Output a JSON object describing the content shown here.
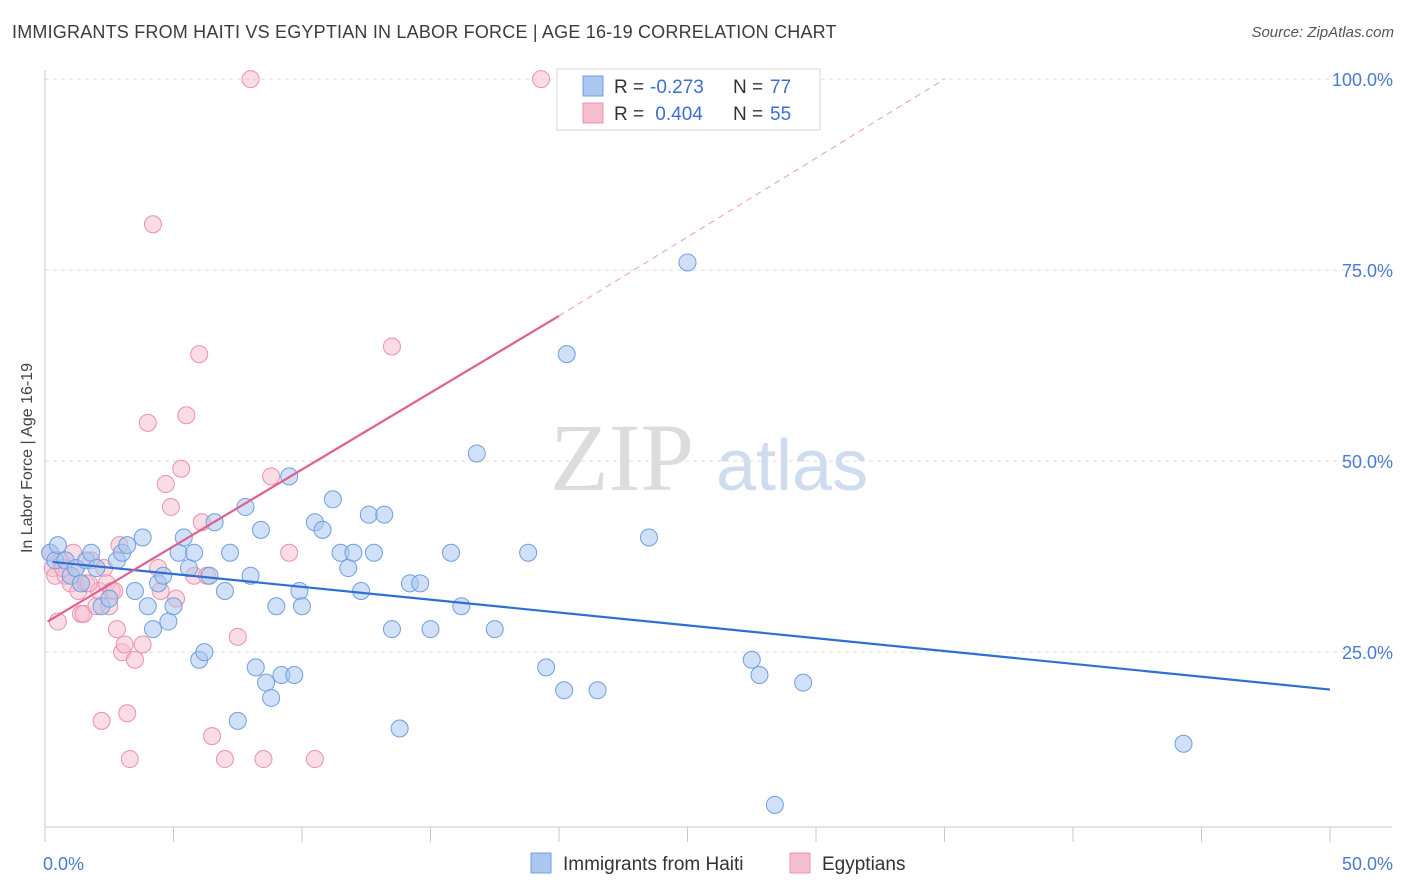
{
  "title": "IMMIGRANTS FROM HAITI VS EGYPTIAN IN LABOR FORCE | AGE 16-19 CORRELATION CHART",
  "source": "Source: ZipAtlas.com",
  "watermark": {
    "zip": "ZIP",
    "atlas": "atlas"
  },
  "legend_box": {
    "rows": [
      {
        "r_label": "R =",
        "r_value": "-0.273",
        "n_label": "N =",
        "n_value": "77"
      },
      {
        "r_label": "R =",
        "r_value": " 0.404",
        "n_label": "N =",
        "n_value": "55"
      }
    ]
  },
  "colors": {
    "haiti_fill": "#a9c7ef",
    "haiti_stroke": "#6f9fe0",
    "haiti_line": "#2f6fd1",
    "egypt_fill": "#f6bfd0",
    "egypt_stroke": "#ec8fae",
    "egypt_line": "#e0608e",
    "tick_blue": "#4a7bd0"
  },
  "chart_data": {
    "type": "scatter",
    "title": "IMMIGRANTS FROM HAITI VS EGYPTIAN IN LABOR FORCE | AGE 16-19 CORRELATION CHART",
    "xlabel": "",
    "ylabel": "In Labor Force | Age 16-19",
    "xlim": [
      0,
      50
    ],
    "ylim": [
      0,
      105
    ],
    "x_tick_labels": [
      "0.0%",
      "50.0%"
    ],
    "y_tick_labels": [
      "25.0%",
      "50.0%",
      "75.0%",
      "100.0%"
    ],
    "y_ticks": [
      25,
      50,
      75,
      100
    ],
    "grid": true,
    "legend_position": "bottom",
    "series": [
      {
        "name": "Immigrants from Haiti",
        "r": -0.273,
        "n": 77,
        "trend": {
          "x": [
            0.3,
            50
          ],
          "y": [
            36.8,
            20.1
          ]
        },
        "points": [
          [
            0.2,
            38
          ],
          [
            0.4,
            37
          ],
          [
            0.5,
            39
          ],
          [
            0.8,
            37
          ],
          [
            1.0,
            35
          ],
          [
            1.2,
            36
          ],
          [
            1.4,
            34
          ],
          [
            1.6,
            37
          ],
          [
            1.8,
            38
          ],
          [
            2.0,
            36
          ],
          [
            2.2,
            31
          ],
          [
            2.5,
            32
          ],
          [
            2.8,
            37
          ],
          [
            3.0,
            38
          ],
          [
            3.2,
            39
          ],
          [
            3.5,
            33
          ],
          [
            3.8,
            40
          ],
          [
            4.0,
            31
          ],
          [
            4.2,
            28
          ],
          [
            4.4,
            34
          ],
          [
            4.6,
            35
          ],
          [
            4.8,
            29
          ],
          [
            5.0,
            31
          ],
          [
            5.2,
            38
          ],
          [
            5.4,
            40
          ],
          [
            5.6,
            36
          ],
          [
            5.8,
            38
          ],
          [
            6.0,
            24
          ],
          [
            6.2,
            25
          ],
          [
            6.4,
            35
          ],
          [
            6.6,
            42
          ],
          [
            7.0,
            33
          ],
          [
            7.2,
            38
          ],
          [
            7.5,
            16
          ],
          [
            7.8,
            44
          ],
          [
            8.0,
            35
          ],
          [
            8.2,
            23
          ],
          [
            8.4,
            41
          ],
          [
            8.6,
            21
          ],
          [
            8.8,
            19
          ],
          [
            9.0,
            31
          ],
          [
            9.2,
            22
          ],
          [
            9.5,
            48
          ],
          [
            9.7,
            22
          ],
          [
            9.9,
            33
          ],
          [
            10.0,
            31
          ],
          [
            10.5,
            42
          ],
          [
            10.8,
            41
          ],
          [
            11.2,
            45
          ],
          [
            11.5,
            38
          ],
          [
            11.8,
            36
          ],
          [
            12.0,
            38
          ],
          [
            12.3,
            33
          ],
          [
            12.6,
            43
          ],
          [
            12.8,
            38
          ],
          [
            13.2,
            43
          ],
          [
            13.5,
            28
          ],
          [
            13.8,
            15
          ],
          [
            14.2,
            34
          ],
          [
            14.6,
            34
          ],
          [
            15.0,
            28
          ],
          [
            15.8,
            38
          ],
          [
            16.2,
            31
          ],
          [
            16.8,
            51
          ],
          [
            17.5,
            28
          ],
          [
            18.8,
            38
          ],
          [
            19.5,
            23
          ],
          [
            20.2,
            20
          ],
          [
            20.3,
            64
          ],
          [
            21.5,
            20
          ],
          [
            23.5,
            40
          ],
          [
            25.0,
            76
          ],
          [
            27.5,
            24
          ],
          [
            27.8,
            22
          ],
          [
            28.4,
            5
          ],
          [
            29.5,
            21
          ],
          [
            44.3,
            13
          ]
        ]
      },
      {
        "name": "Egyptians",
        "r": 0.404,
        "n": 55,
        "trend": {
          "x": [
            0.1,
            20
          ],
          "y": [
            29,
            69
          ]
        },
        "trend_dashed": {
          "x": [
            20,
            35
          ],
          "y": [
            69,
            100
          ]
        },
        "points": [
          [
            0.2,
            38
          ],
          [
            0.3,
            36
          ],
          [
            0.4,
            35
          ],
          [
            0.5,
            29
          ],
          [
            0.6,
            37
          ],
          [
            0.8,
            35
          ],
          [
            1.0,
            34
          ],
          [
            1.1,
            38
          ],
          [
            1.2,
            36
          ],
          [
            1.3,
            33
          ],
          [
            1.4,
            30
          ],
          [
            1.5,
            30
          ],
          [
            1.6,
            34
          ],
          [
            1.8,
            37
          ],
          [
            2.0,
            31
          ],
          [
            2.1,
            33
          ],
          [
            2.2,
            16
          ],
          [
            2.3,
            36
          ],
          [
            2.4,
            34
          ],
          [
            2.6,
            33
          ],
          [
            2.7,
            33
          ],
          [
            2.8,
            28
          ],
          [
            2.9,
            39
          ],
          [
            3.0,
            25
          ],
          [
            3.1,
            26
          ],
          [
            3.2,
            17
          ],
          [
            3.3,
            11
          ],
          [
            3.5,
            24
          ],
          [
            3.8,
            26
          ],
          [
            4.0,
            55
          ],
          [
            4.2,
            81
          ],
          [
            4.4,
            36
          ],
          [
            4.5,
            33
          ],
          [
            4.7,
            47
          ],
          [
            4.9,
            44
          ],
          [
            5.1,
            32
          ],
          [
            5.3,
            49
          ],
          [
            5.5,
            56
          ],
          [
            5.8,
            35
          ],
          [
            6.0,
            64
          ],
          [
            6.1,
            42
          ],
          [
            6.3,
            35
          ],
          [
            6.5,
            14
          ],
          [
            7.0,
            11
          ],
          [
            7.5,
            27
          ],
          [
            8.0,
            100
          ],
          [
            8.5,
            11
          ],
          [
            8.8,
            48
          ],
          [
            9.5,
            38
          ],
          [
            10.5,
            11
          ],
          [
            13.5,
            65
          ],
          [
            19.3,
            100
          ],
          [
            0.7,
            36
          ],
          [
            1.7,
            34
          ],
          [
            2.5,
            31
          ]
        ]
      }
    ]
  }
}
